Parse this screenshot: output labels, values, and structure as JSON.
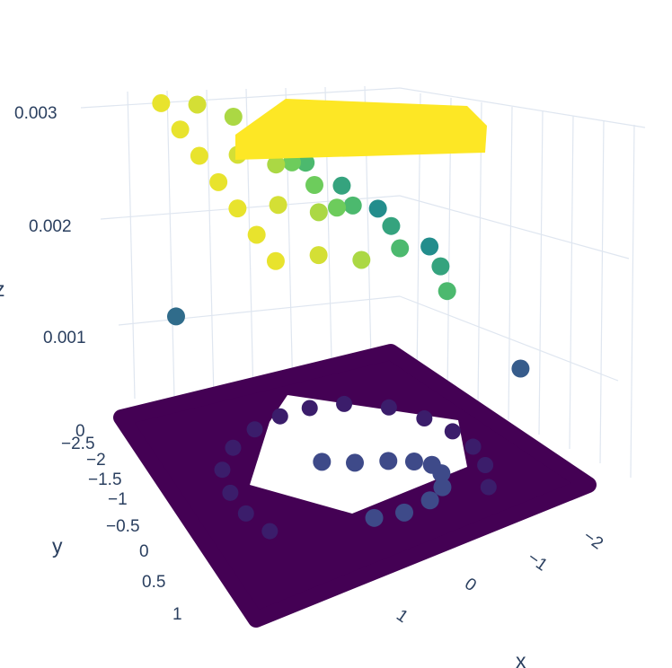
{
  "chart_data": {
    "type": "scatter3d",
    "title": "",
    "xlabel": "x",
    "ylabel": "y",
    "zlabel": "z",
    "x_ticks": [
      "−2",
      "−1",
      "0",
      "1"
    ],
    "y_ticks": [
      "−2.5",
      "−2",
      "−1.5",
      "−1",
      "−0.5",
      "0",
      "0.5",
      "1"
    ],
    "z_ticks": [
      "0",
      "0.001",
      "0.002",
      "0.003"
    ],
    "xlim": [
      -2.5,
      1.5
    ],
    "ylim": [
      -2.5,
      1.5
    ],
    "zlim": [
      0,
      0.0031
    ],
    "colorscale": "viridis",
    "grid": true,
    "legend": false,
    "colors": {
      "low": "#440154",
      "mid": "#21918c",
      "high": "#fde725",
      "gridline": "#dfe6f0",
      "tick_text": "#2a3f5f"
    },
    "series": [
      {
        "description_of_marker_groups": "",
        "floor_square": [
          [
            -2.3,
            -2.4,
            0
          ],
          [
            1.4,
            -2.4,
            0
          ],
          [
            1.4,
            1.4,
            0
          ],
          [
            -2.3,
            1.4,
            0
          ]
        ],
        "floor_ring_points": [
          [
            -1.2,
            -1.6,
            2e-05
          ],
          [
            -0.8,
            -1.8,
            2e-05
          ],
          [
            -0.4,
            -1.9,
            2e-05
          ],
          [
            0.0,
            -1.9,
            2e-05
          ],
          [
            0.4,
            -1.8,
            2e-05
          ],
          [
            0.8,
            -1.6,
            2e-05
          ],
          [
            -1.5,
            -1.2,
            2e-05
          ],
          [
            -1.6,
            -0.8,
            2e-05
          ],
          [
            -1.6,
            -0.4,
            2e-05
          ],
          [
            -1.5,
            0.0,
            2e-05
          ],
          [
            -1.3,
            0.4,
            2e-05
          ],
          [
            -1.0,
            0.7,
            2e-05
          ],
          [
            -0.6,
            0.8,
            2e-05
          ],
          [
            -0.2,
            0.8,
            2e-05
          ],
          [
            0.2,
            0.7,
            2e-05
          ]
        ],
        "floor_arc_points": [
          [
            -0.3,
            -0.2,
            0.0002
          ],
          [
            -0.1,
            -0.5,
            0.0002
          ],
          [
            0.1,
            -0.8,
            0.00022
          ],
          [
            0.3,
            -1.0,
            0.00024
          ],
          [
            0.5,
            -1.1,
            0.00026
          ],
          [
            0.7,
            -1.1,
            0.00026
          ],
          [
            0.9,
            -1.0,
            0.00024
          ],
          [
            1.0,
            -0.8,
            0.00022
          ],
          [
            1.0,
            -0.5,
            0.0002
          ],
          [
            0.9,
            -0.2,
            0.0002
          ]
        ],
        "upper_points": [
          [
            -2.0,
            1.0,
            0.003
          ],
          [
            -1.5,
            1.0,
            0.003
          ],
          [
            -1.0,
            1.0,
            0.003
          ],
          [
            -0.5,
            1.0,
            0.003
          ],
          [
            0.0,
            1.0,
            0.003
          ],
          [
            0.5,
            1.0,
            0.003
          ],
          [
            1.0,
            1.0,
            0.003
          ],
          [
            -2.0,
            0.5,
            0.0029
          ],
          [
            -1.0,
            0.5,
            0.0029
          ],
          [
            0.0,
            0.5,
            0.0029
          ],
          [
            1.0,
            0.5,
            0.0029
          ],
          [
            -2.0,
            0.0,
            0.0027
          ],
          [
            -1.0,
            0.0,
            0.0027
          ],
          [
            0.0,
            0.0,
            0.0027
          ],
          [
            1.0,
            0.0,
            0.0027
          ],
          [
            -2.0,
            -0.5,
            0.0024
          ],
          [
            -1.5,
            -0.5,
            0.0024
          ],
          [
            -1.0,
            -0.5,
            0.0024
          ],
          [
            -0.5,
            -0.5,
            0.0024
          ],
          [
            -2.0,
            -1.0,
            0.0021
          ],
          [
            -1.0,
            -1.0,
            0.0021
          ],
          [
            0.0,
            -1.0,
            0.0021
          ],
          [
            1.0,
            -1.0,
            0.0021
          ],
          [
            -2.0,
            -1.5,
            0.0018
          ],
          [
            -1.0,
            -1.5,
            0.0018
          ],
          [
            0.0,
            -1.5,
            0.0018
          ],
          [
            -2.0,
            -2.0,
            0.0015
          ],
          [
            -1.0,
            -2.0,
            0.0015
          ],
          [
            -1.8,
            0.9,
            0.0011
          ],
          [
            0.6,
            -2.1,
            0.0009
          ]
        ]
      }
    ]
  }
}
